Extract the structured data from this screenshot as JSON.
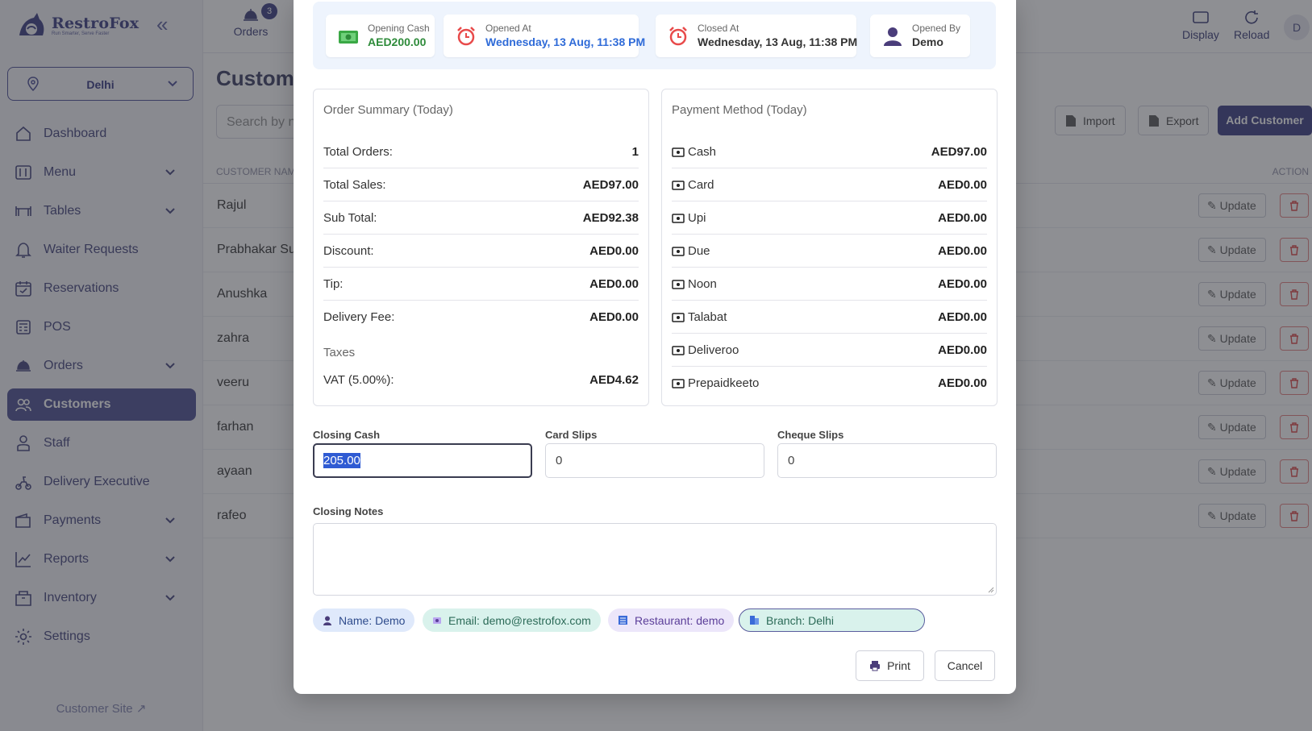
{
  "app": {
    "logo_name": "RestroFox",
    "logo_tagline": "Run Smarter, Serve Faster",
    "branch_selector": "Delhi",
    "customer_site_link": "Customer Site"
  },
  "topbar": {
    "orders_label": "Orders",
    "orders_badge": "3",
    "display_label": "Display",
    "reload_label": "Reload",
    "avatar_initial": "D"
  },
  "sidebar": {
    "items": [
      {
        "label": "Dashboard",
        "icon": "home-icon"
      },
      {
        "label": "Menu",
        "icon": "menu-book-icon",
        "has_submenu": true
      },
      {
        "label": "Tables",
        "icon": "table-icon",
        "has_submenu": true
      },
      {
        "label": "Waiter Requests",
        "icon": "bell-icon"
      },
      {
        "label": "Reservations",
        "icon": "calendar-icon"
      },
      {
        "label": "POS",
        "icon": "pos-icon"
      },
      {
        "label": "Orders",
        "icon": "cloche-icon",
        "has_submenu": true
      },
      {
        "label": "Customers",
        "icon": "users-icon",
        "active": true
      },
      {
        "label": "Staff",
        "icon": "staff-icon"
      },
      {
        "label": "Delivery Executive",
        "icon": "scooter-icon"
      },
      {
        "label": "Payments",
        "icon": "wallet-icon",
        "has_submenu": true
      },
      {
        "label": "Reports",
        "icon": "chart-icon",
        "has_submenu": true
      },
      {
        "label": "Inventory",
        "icon": "box-icon",
        "has_submenu": true
      },
      {
        "label": "Settings",
        "icon": "gear-icon"
      }
    ]
  },
  "customers_page": {
    "title": "Custome",
    "search_placeholder": "Search by n",
    "import_label": "Import",
    "export_label": "Export",
    "add_label": "Add Customer",
    "col_name": "CUSTOMER NAM",
    "col_action": "ACTION",
    "update_label": "Update",
    "rows": [
      "Rajul",
      "Prabhakar Sul",
      "Anushka",
      "zahra",
      "veeru",
      "farhan",
      "ayaan",
      "rafeo"
    ]
  },
  "modal": {
    "opening_cash": {
      "label": "Opening Cash",
      "value": "AED200.00"
    },
    "opened_at": {
      "label": "Opened At",
      "value": "Wednesday, 13 Aug, 11:38 PM"
    },
    "closed_at": {
      "label": "Closed At",
      "value": "Wednesday, 13 Aug, 11:38 PM"
    },
    "opened_by": {
      "label": "Opened By",
      "value": "Demo"
    },
    "order_summary": {
      "title": "Order Summary (Today)",
      "rows": [
        {
          "label": "Total Orders:",
          "value": "1"
        },
        {
          "label": "Total Sales:",
          "value": "AED97.00"
        },
        {
          "label": "Sub Total:",
          "value": "AED92.38"
        },
        {
          "label": "Discount:",
          "value": "AED0.00"
        },
        {
          "label": "Tip:",
          "value": "AED0.00"
        },
        {
          "label": "Delivery Fee:",
          "value": "AED0.00"
        }
      ],
      "taxes_label": "Taxes",
      "tax": {
        "label": "VAT (5.00%):",
        "value": "AED4.62"
      }
    },
    "payment_methods": {
      "title": "Payment Method (Today)",
      "rows": [
        {
          "label": "Cash",
          "value": "AED97.00"
        },
        {
          "label": "Card",
          "value": "AED0.00"
        },
        {
          "label": "Upi",
          "value": "AED0.00"
        },
        {
          "label": "Due",
          "value": "AED0.00"
        },
        {
          "label": "Noon",
          "value": "AED0.00"
        },
        {
          "label": "Talabat",
          "value": "AED0.00"
        },
        {
          "label": "Deliveroo",
          "value": "AED0.00"
        },
        {
          "label": "Prepaidkeeto",
          "value": "AED0.00"
        }
      ]
    },
    "closing_cash": {
      "label": "Closing Cash",
      "value": "205.00"
    },
    "card_slips": {
      "label": "Card Slips",
      "value": "0"
    },
    "cheque_slips": {
      "label": "Cheque Slips",
      "value": "0"
    },
    "closing_notes": {
      "label": "Closing Notes",
      "value": ""
    },
    "chips": {
      "name": "Name: Demo",
      "email": "Email: demo@restrofox.com",
      "restaurant": "Restaurant: demo",
      "branch": "Branch: Delhi"
    },
    "print_label": "Print",
    "cancel_label": "Cancel"
  },
  "colors": {
    "brand": "#4a4d8c",
    "opening_cash_value": "#2e8b3a",
    "opened_at_value": "#2f6bd8",
    "sidebar_active": "#5b5d9a"
  }
}
